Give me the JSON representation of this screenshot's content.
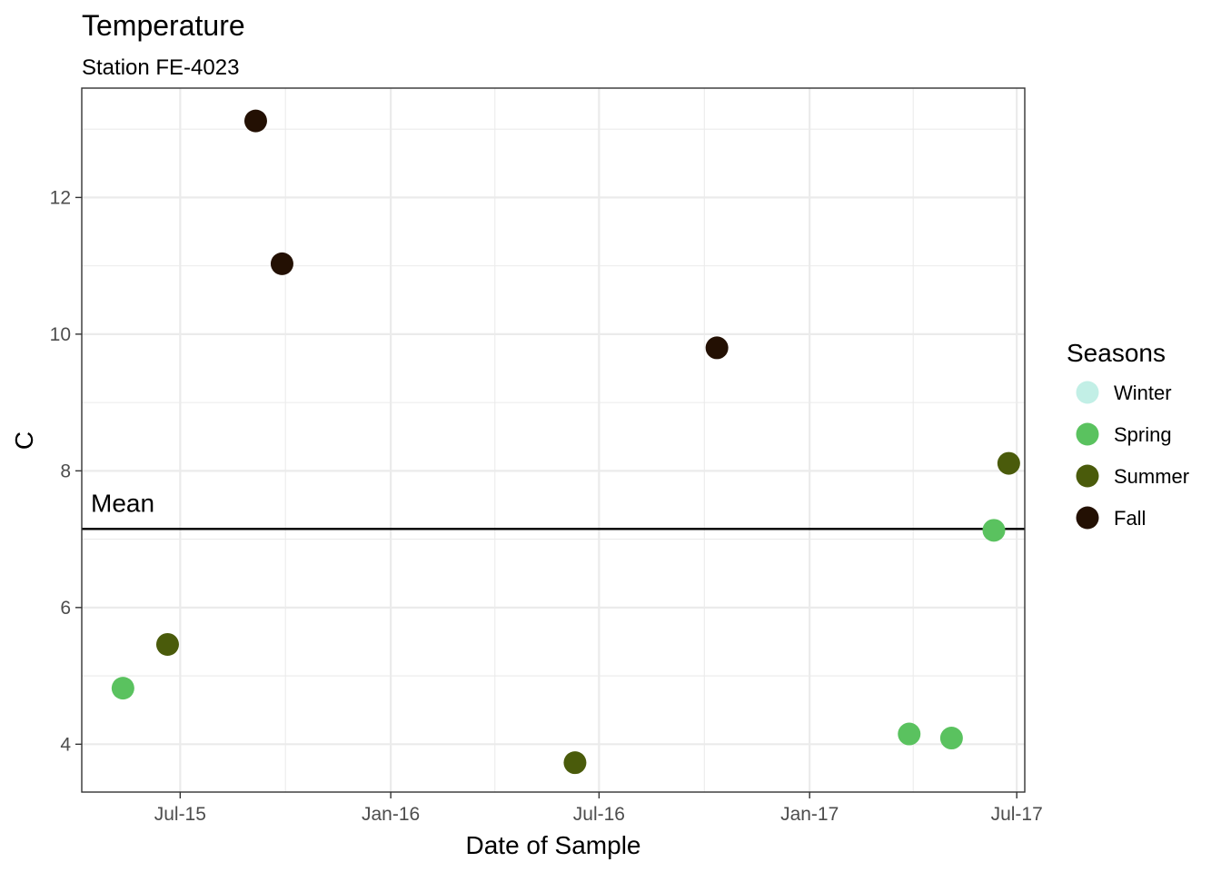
{
  "chart_data": {
    "type": "scatter",
    "title": "Temperature",
    "subtitle": "Station FE-4023",
    "xlabel": "Date of Sample",
    "ylabel": "C",
    "x_ticks": [
      "Jul-15",
      "Jan-16",
      "Jul-16",
      "Jan-17",
      "Jul-17"
    ],
    "y_ticks": [
      4,
      6,
      8,
      10,
      12
    ],
    "xlim": [
      "2015-04-06",
      "2017-07-08"
    ],
    "ylim": [
      3.3,
      13.6
    ],
    "grid": true,
    "legend_position": "right",
    "legend": {
      "title": "Seasons",
      "entries": [
        {
          "name": "Winter",
          "color": "#c2efe6"
        },
        {
          "name": "Spring",
          "color": "#5ac25f"
        },
        {
          "name": "Summer",
          "color": "#4a5b0b"
        },
        {
          "name": "Fall",
          "color": "#231003"
        }
      ]
    },
    "mean_line": {
      "label": "Mean",
      "value": 7.15
    },
    "points": [
      {
        "date": "2015-05-12",
        "value": 4.82,
        "season": "Spring"
      },
      {
        "date": "2015-06-20",
        "value": 5.46,
        "season": "Summer"
      },
      {
        "date": "2015-09-05",
        "value": 13.12,
        "season": "Fall"
      },
      {
        "date": "2015-09-28",
        "value": 11.03,
        "season": "Fall"
      },
      {
        "date": "2016-06-10",
        "value": 3.73,
        "season": "Summer"
      },
      {
        "date": "2016-10-12",
        "value": 9.8,
        "season": "Fall"
      },
      {
        "date": "2017-03-29",
        "value": 4.15,
        "season": "Spring"
      },
      {
        "date": "2017-05-05",
        "value": 4.09,
        "season": "Spring"
      },
      {
        "date": "2017-06-11",
        "value": 7.13,
        "season": "Spring"
      },
      {
        "date": "2017-06-24",
        "value": 8.11,
        "season": "Summer"
      }
    ]
  }
}
